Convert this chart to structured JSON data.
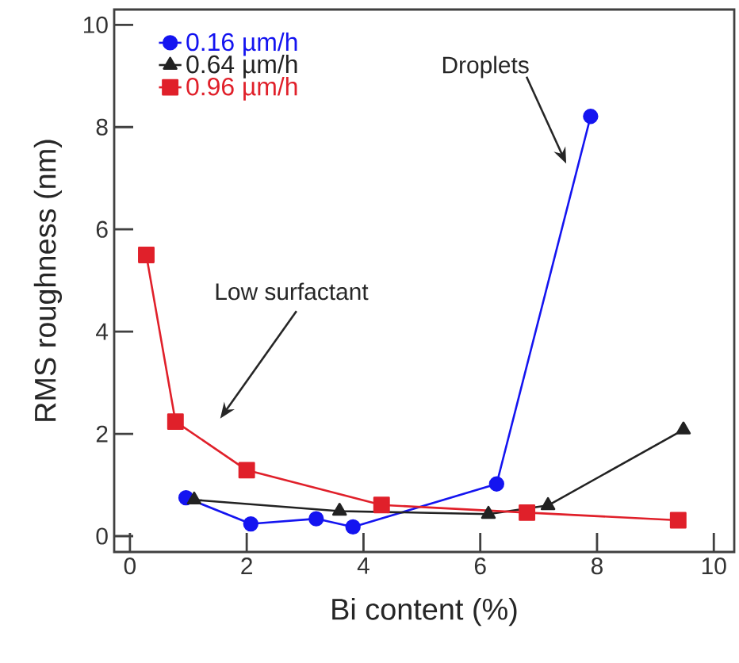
{
  "chart_data": {
    "type": "line",
    "xlabel": "Bi content (%)",
    "ylabel": "RMS roughness (nm)",
    "xlim": [
      -0.27,
      10.35
    ],
    "ylim": [
      -0.31,
      10.3
    ],
    "xticks": [
      0,
      2,
      4,
      6,
      8,
      10
    ],
    "yticks": [
      0,
      2,
      4,
      6,
      8,
      10
    ],
    "legend": "top left",
    "grid": false,
    "series": [
      {
        "name": "0.16 µm/h",
        "color": "#1414f0",
        "marker": "circle",
        "x": [
          0.96,
          2.07,
          3.19,
          3.82,
          6.28,
          7.89
        ],
        "values": [
          0.75,
          0.24,
          0.34,
          0.18,
          1.02,
          8.21
        ]
      },
      {
        "name": "0.64 µm/h",
        "color": "#222222",
        "marker": "triangle",
        "x": [
          1.1,
          3.59,
          6.14,
          7.16,
          9.48
        ],
        "values": [
          0.71,
          0.49,
          0.43,
          0.6,
          2.08
        ]
      },
      {
        "name": "0.96 µm/h",
        "color": "#e0202a",
        "marker": "square",
        "x": [
          0.28,
          0.78,
          2.0,
          4.31,
          6.8,
          9.39
        ],
        "values": [
          5.5,
          2.24,
          1.29,
          0.61,
          0.46,
          0.31
        ]
      }
    ],
    "annotations": [
      "Droplets",
      "Low surfactant"
    ]
  }
}
